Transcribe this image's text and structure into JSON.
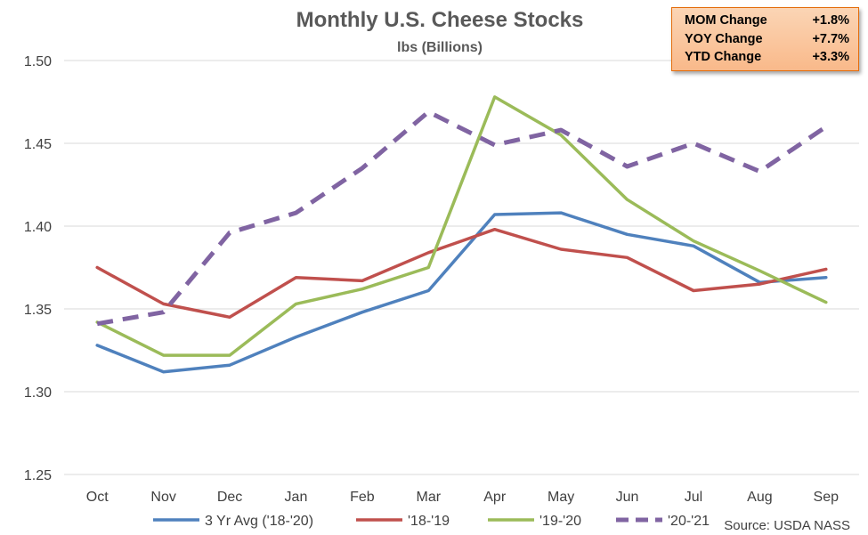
{
  "chart_data": {
    "type": "line",
    "title": "Monthly U.S. Cheese Stocks",
    "subtitle": "lbs (Billions)",
    "categories": [
      "Oct",
      "Nov",
      "Dec",
      "Jan",
      "Feb",
      "Mar",
      "Apr",
      "May",
      "Jun",
      "Jul",
      "Aug",
      "Sep"
    ],
    "ylim": [
      1.25,
      1.5
    ],
    "yticks": [
      "1.25",
      "1.30",
      "1.35",
      "1.40",
      "1.45",
      "1.50"
    ],
    "grid": true,
    "legend_position": "bottom",
    "series": [
      {
        "name": "3 Yr Avg ('18-'20)",
        "color": "#4f81bd",
        "dash": false,
        "values": [
          1.328,
          1.312,
          1.316,
          1.333,
          1.348,
          1.361,
          1.407,
          1.408,
          1.395,
          1.388,
          1.366,
          1.369
        ]
      },
      {
        "name": "'18-'19",
        "color": "#c0504d",
        "dash": false,
        "values": [
          1.375,
          1.353,
          1.345,
          1.369,
          1.367,
          1.384,
          1.398,
          1.386,
          1.381,
          1.361,
          1.365,
          1.374
        ]
      },
      {
        "name": "'19-'20",
        "color": "#9bbb59",
        "dash": false,
        "values": [
          1.342,
          1.322,
          1.322,
          1.353,
          1.362,
          1.375,
          1.478,
          1.455,
          1.416,
          1.391,
          1.373,
          1.354
        ]
      },
      {
        "name": "'20-'21",
        "color": "#8064a2",
        "dash": true,
        "values": [
          1.341,
          1.348,
          1.396,
          1.408,
          1.435,
          1.469,
          1.449,
          1.458,
          1.436,
          1.45,
          1.433,
          1.46
        ]
      }
    ],
    "source": "Source: USDA NASS"
  },
  "stats": [
    {
      "label": "MOM Change",
      "value": "+1.8%"
    },
    {
      "label": "YOY Change",
      "value": "+7.7%"
    },
    {
      "label": "YTD Change",
      "value": "+3.3%"
    }
  ]
}
